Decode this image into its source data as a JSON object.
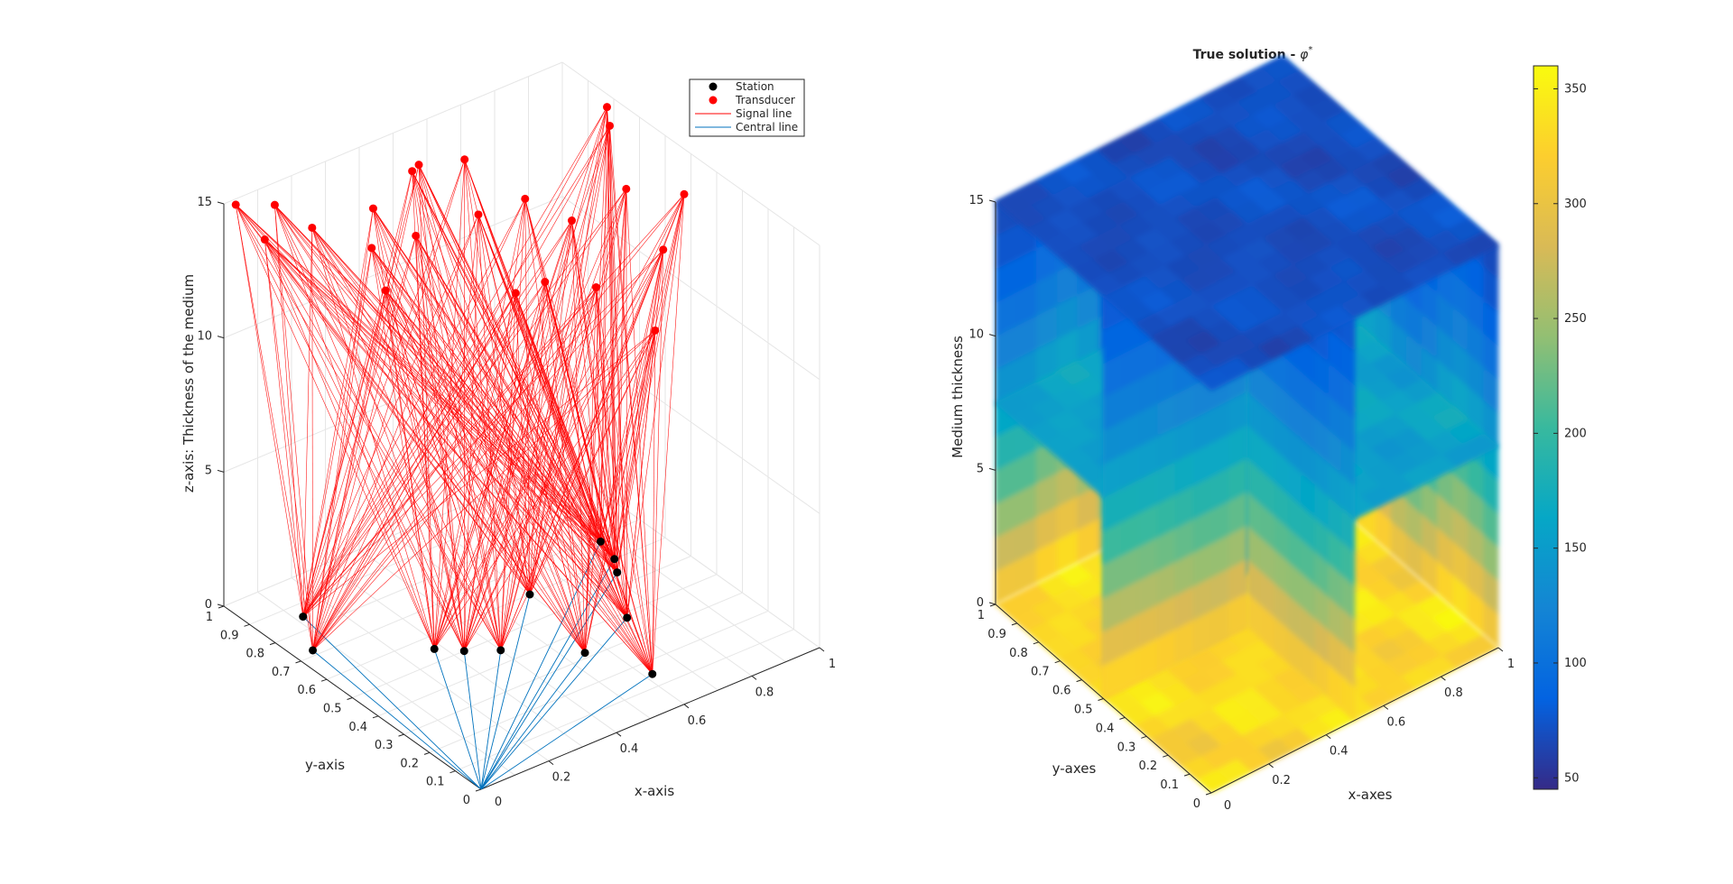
{
  "chart_data": [
    {
      "type": "scatter3d",
      "title": "",
      "xlabel": "x-axis",
      "ylabel": "y-axis",
      "zlabel": "z-axis: Thickness of the medium",
      "xlim": [
        0,
        1
      ],
      "ylim": [
        0,
        1
      ],
      "zlim": [
        0,
        15
      ],
      "x_ticks": [
        "0.2",
        "0.4",
        "0.6",
        "0.8",
        "1"
      ],
      "y_ticks": [
        "0",
        "0.1",
        "0.2",
        "0.3",
        "0.4",
        "0.5",
        "0.6",
        "0.7",
        "0.8",
        "0.9",
        "1"
      ],
      "z_ticks": [
        "0",
        "5",
        "10",
        "15"
      ],
      "x_origin_label": "0",
      "grid": true,
      "legend_position": "top-right",
      "legend": [
        {
          "label": "Station",
          "kind": "marker",
          "color": "#000000"
        },
        {
          "label": "Transducer",
          "kind": "marker",
          "color": "#ff0000"
        },
        {
          "label": "Signal line",
          "kind": "line",
          "color": "#ff0000"
        },
        {
          "label": "Central line",
          "kind": "line",
          "color": "#0072bd"
        }
      ],
      "center": [
        0,
        0,
        0
      ],
      "stations": [
        [
          0.05,
          0.72,
          0
        ],
        [
          0.12,
          0.85,
          0
        ],
        [
          0.28,
          0.55,
          0
        ],
        [
          0.33,
          0.5,
          0
        ],
        [
          0.4,
          0.45,
          0
        ],
        [
          0.55,
          0.32,
          0
        ],
        [
          0.62,
          0.15,
          0
        ],
        [
          0.6,
          0.6,
          0
        ],
        [
          0.72,
          0.38,
          0
        ],
        [
          0.82,
          0.55,
          0
        ],
        [
          0.85,
          0.6,
          0
        ],
        [
          0.87,
          0.68,
          0
        ]
      ],
      "transducers": [
        [
          0.02,
          0.98,
          15
        ],
        [
          0.12,
          0.96,
          14.6
        ],
        [
          0.2,
          0.92,
          13.6
        ],
        [
          0.35,
          0.88,
          13.8
        ],
        [
          0.45,
          0.86,
          14.8
        ],
        [
          0.5,
          0.9,
          14.5
        ],
        [
          0.62,
          0.88,
          14.2
        ],
        [
          0.7,
          0.75,
          13.2
        ],
        [
          0.8,
          0.7,
          12.2
        ],
        [
          0.98,
          0.5,
          13.6
        ],
        [
          0.95,
          0.75,
          14.6
        ],
        [
          0.98,
          0.8,
          14.8
        ],
        [
          0.06,
          0.92,
          13.9
        ],
        [
          0.25,
          0.7,
          12.5
        ],
        [
          0.3,
          0.82,
          13.0
        ],
        [
          0.52,
          0.55,
          12.0
        ],
        [
          0.6,
          0.8,
          12.8
        ],
        [
          0.72,
          0.5,
          11.5
        ],
        [
          0.88,
          0.45,
          12.4
        ],
        [
          0.9,
          0.62,
          13.4
        ],
        [
          0.4,
          0.78,
          13.2
        ],
        [
          0.66,
          0.62,
          11.2
        ],
        [
          0.78,
          0.35,
          10.6
        ]
      ],
      "colors": {
        "station": "#000000",
        "transducer": "#ff0000",
        "signal": "#ff0000",
        "central": "#0072bd"
      }
    },
    {
      "type": "slice3d",
      "title": "True solution - ",
      "title_symbol": "φ",
      "title_sup": "*",
      "xlabel": "x-axes",
      "ylabel": "y-axes",
      "zlabel": "Medium thickness",
      "xlim": [
        0,
        1
      ],
      "ylim": [
        0,
        1
      ],
      "zlim": [
        0,
        15
      ],
      "x_ticks": [
        "0.2",
        "0.4",
        "0.6",
        "0.8",
        "1"
      ],
      "y_ticks": [
        "0",
        "0.1",
        "0.2",
        "0.3",
        "0.4",
        "0.5",
        "0.6",
        "0.7",
        "0.8",
        "0.9",
        "1"
      ],
      "z_ticks": [
        "0",
        "5",
        "10",
        "15"
      ],
      "x_origin_label": "0",
      "slices": {
        "x": [
          0.5,
          1
        ],
        "y": [
          0.5,
          1
        ],
        "z": [
          0,
          7.5,
          15
        ]
      },
      "colormap": "parula",
      "clim": [
        45,
        360
      ],
      "colorbar_ticks": [
        50,
        100,
        150,
        200,
        250,
        300,
        350
      ],
      "value_range": [
        70,
        330
      ]
    }
  ]
}
